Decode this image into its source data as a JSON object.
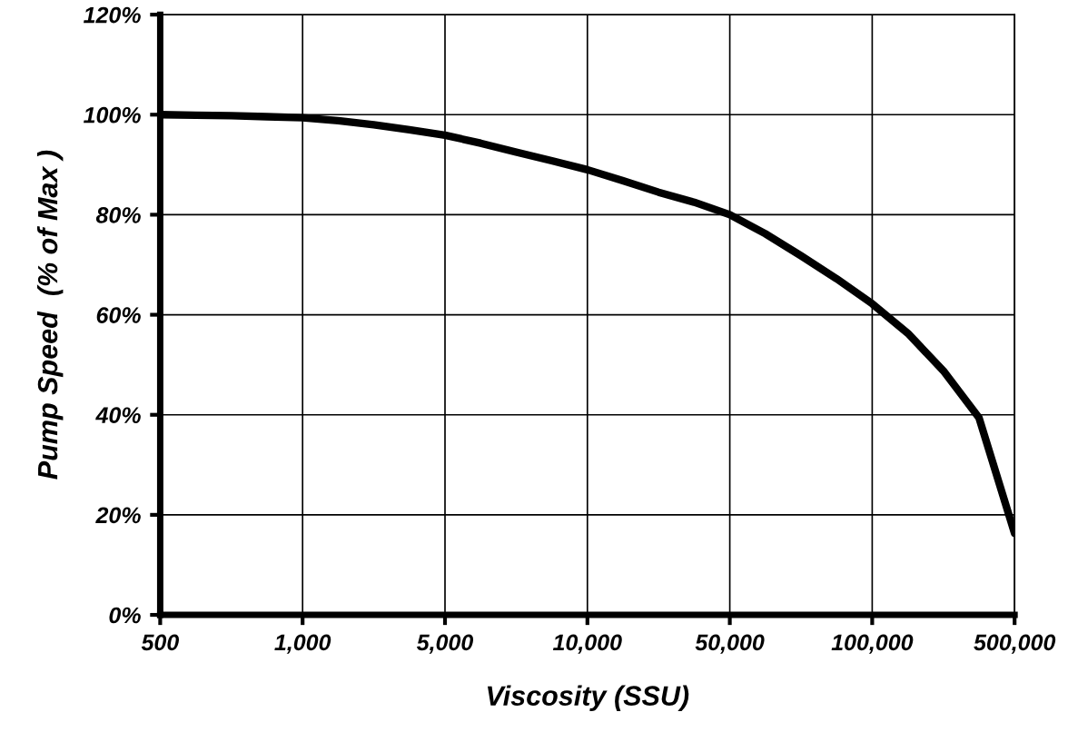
{
  "chart_data": {
    "type": "line",
    "xlabel": "Viscosity (SSU)",
    "ylabel": "Pump Speed  (% of Max )",
    "categories": [
      "500",
      null,
      null,
      null,
      "1,000",
      null,
      null,
      null,
      "5,000",
      null,
      null,
      null,
      "10,000",
      null,
      null,
      null,
      "50,000",
      null,
      null,
      null,
      "100,000",
      null,
      null,
      null,
      "500,000"
    ],
    "series": [
      {
        "color": "#000000",
        "values": [
          100,
          99.9,
          99.8,
          99.6,
          99.4,
          98.8,
          98,
          97,
          95.9,
          94.3,
          92.5,
          90.8,
          89,
          86.8,
          84.5,
          82.5,
          80,
          76.2,
          71.8,
          67.2,
          62.2,
          56.3,
          48.8,
          39.4,
          16.3
        ]
      }
    ],
    "ylim": [
      0,
      120
    ],
    "yticks": [
      {
        "value": 0,
        "label": "0%"
      },
      {
        "value": 20,
        "label": "20%"
      },
      {
        "value": 40,
        "label": "40%"
      },
      {
        "value": 60,
        "label": "60%"
      },
      {
        "value": 80,
        "label": "80%"
      },
      {
        "value": 100,
        "label": "100%"
      },
      {
        "value": 120,
        "label": "120%"
      }
    ],
    "grid": true,
    "marker": "none",
    "line_style": "solid",
    "legend": false
  }
}
